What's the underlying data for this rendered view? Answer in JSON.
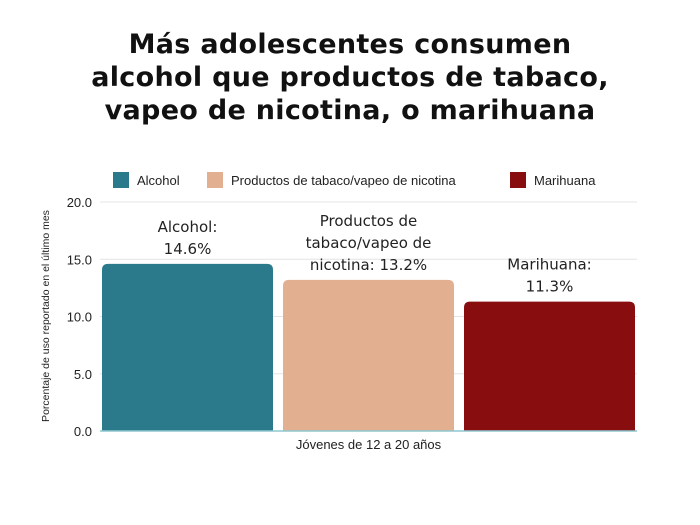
{
  "chart_data": {
    "type": "bar",
    "title_lines": [
      "Más adolescentes consumen",
      "alcohol que productos de tabaco,",
      "vapeo de nicotina, o marihuana"
    ],
    "xlabel": "Jóvenes de 12 a 20 años",
    "ylabel": "Porcentaje de uso reportado en el último mes",
    "ylim": [
      0,
      20
    ],
    "yticks": [
      "0.0",
      "5.0",
      "10.0",
      "15.0",
      "20.0"
    ],
    "grid": true,
    "legend_position": "top",
    "series": [
      {
        "name": "Alcohol",
        "value": 14.6,
        "color": "#2b7a8c",
        "label_lines": [
          "Alcohol:",
          "14.6%"
        ]
      },
      {
        "name": "Productos de tabaco/vapeo de nicotina",
        "value": 13.2,
        "color": "#e2b091",
        "label_lines": [
          "Productos de",
          "tabaco/vapeo de",
          "nicotina: 13.2%"
        ]
      },
      {
        "name": "Marihuana",
        "value": 11.3,
        "color": "#880d0f",
        "label_lines": [
          "Marihuana:",
          "11.3%"
        ]
      }
    ]
  }
}
